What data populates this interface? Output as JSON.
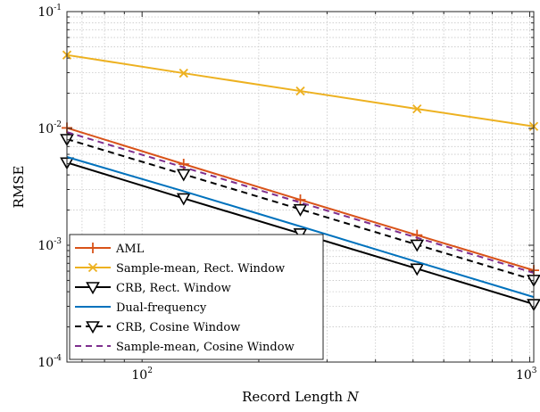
{
  "chart_data": {
    "type": "line",
    "xscale": "log",
    "yscale": "log",
    "xlim": [
      64,
      1024
    ],
    "ylim": [
      0.0001,
      0.1
    ],
    "xlabel": "Record Length",
    "xlabel_var": "N",
    "ylabel": "RMSE",
    "grid": true,
    "legend_position": "lower-left",
    "xticks": [
      {
        "value": 100,
        "base": "10",
        "exp": "2"
      },
      {
        "value": 1000,
        "base": "10",
        "exp": "3"
      }
    ],
    "yticks": [
      {
        "value": 0.0001,
        "base": "10",
        "exp": "-4"
      },
      {
        "value": 0.001,
        "base": "10",
        "exp": "-3"
      },
      {
        "value": 0.01,
        "base": "10",
        "exp": "-2"
      },
      {
        "value": 0.1,
        "base": "10",
        "exp": "-1"
      }
    ],
    "series": [
      {
        "name": "AML",
        "color": "#D95319",
        "dash": "solid",
        "marker": "plus",
        "x": [
          64,
          128,
          256,
          512,
          1024
        ],
        "y": [
          0.0101,
          0.00495,
          0.00245,
          0.00122,
          0.00061
        ]
      },
      {
        "name": "Sample-mean, Rect. Window",
        "color": "#EDB120",
        "dash": "solid",
        "marker": "x",
        "x": [
          64,
          128,
          256,
          512,
          1024
        ],
        "y": [
          0.0425,
          0.0297,
          0.0209,
          0.0147,
          0.0104
        ]
      },
      {
        "name": "CRB, Rect. Window",
        "color": "#000000",
        "dash": "solid",
        "marker": "triangle-down",
        "x": [
          64,
          128,
          256,
          512,
          1024
        ],
        "y": [
          0.0051,
          0.00252,
          0.00126,
          0.00063,
          0.000313
        ]
      },
      {
        "name": "Dual-frequency",
        "color": "#0072BD",
        "dash": "solid",
        "marker": "none",
        "x": [
          64,
          128,
          256,
          512,
          1024
        ],
        "y": [
          0.0057,
          0.0029,
          0.00145,
          0.00072,
          0.00036
        ]
      },
      {
        "name": "CRB, Cosine Window",
        "color": "#000000",
        "dash": "dashed",
        "marker": "triangle-down",
        "x": [
          64,
          128,
          256,
          512,
          1024
        ],
        "y": [
          0.0081,
          0.00405,
          0.00203,
          0.00101,
          0.000505
        ]
      },
      {
        "name": "Sample-mean, Cosine Window",
        "color": "#7E2F8E",
        "dash": "dashed",
        "marker": "none",
        "x": [
          64,
          128,
          256,
          512,
          1024
        ],
        "y": [
          0.0093,
          0.00465,
          0.00232,
          0.00116,
          0.00058
        ]
      }
    ]
  }
}
